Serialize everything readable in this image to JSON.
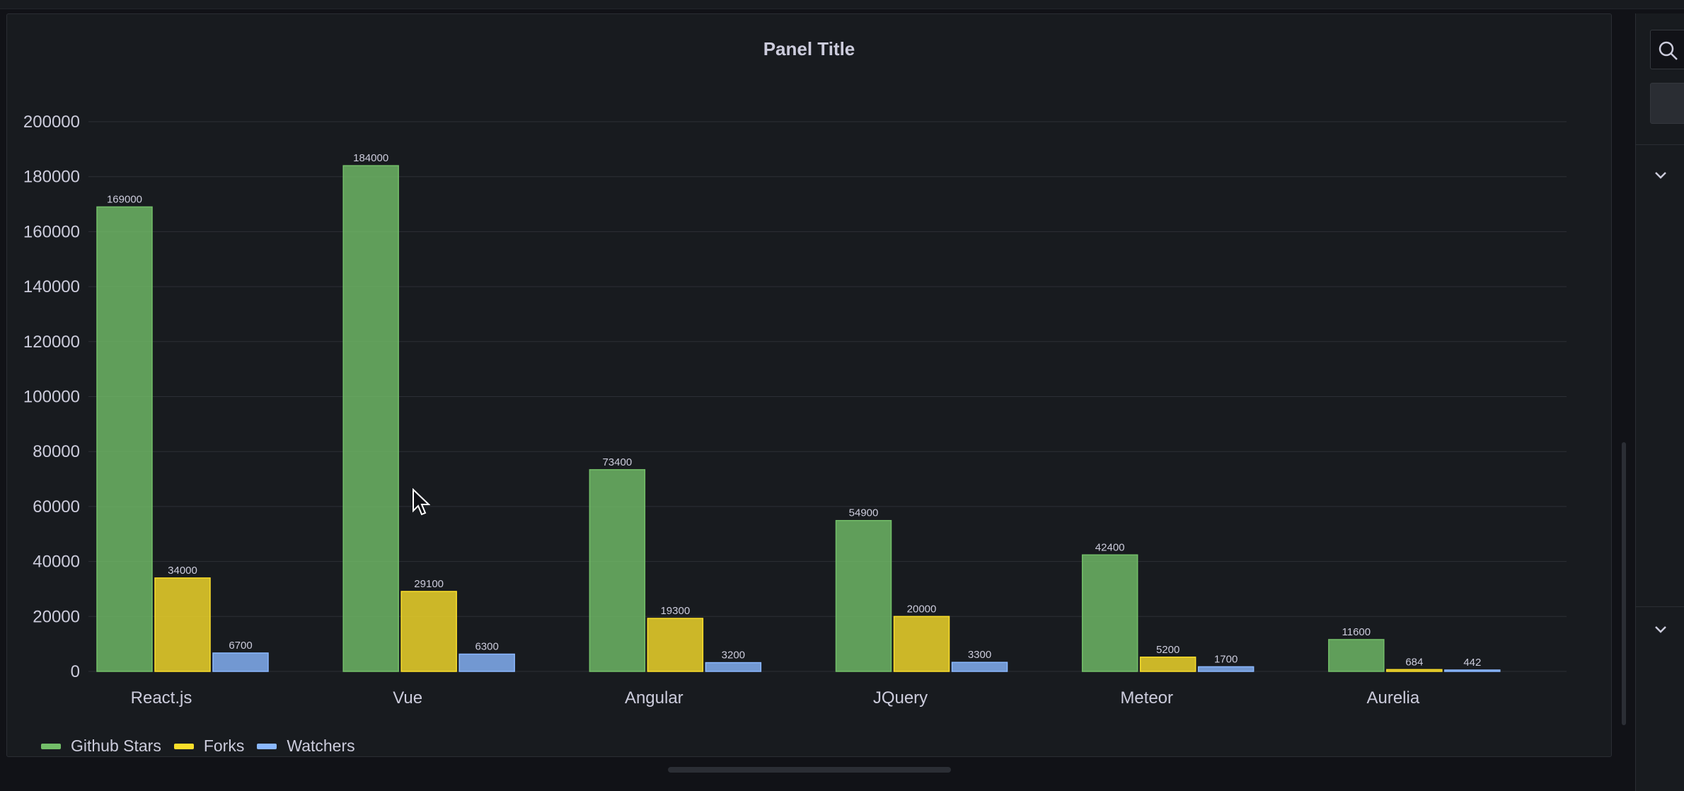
{
  "panel": {
    "title": "Panel Title"
  },
  "chart_data": {
    "type": "bar",
    "title": "Panel Title",
    "categories": [
      "React.js",
      "Vue",
      "Angular",
      "JQuery",
      "Meteor",
      "Aurelia"
    ],
    "series": [
      {
        "name": "Github Stars",
        "color": "#73bf69",
        "values": [
          169000,
          184000,
          73400,
          54900,
          42400,
          11600
        ]
      },
      {
        "name": "Forks",
        "color": "#fade2a",
        "values": [
          34000,
          29100,
          19300,
          20000,
          5200,
          684
        ]
      },
      {
        "name": "Watchers",
        "color": "#8ab8ff",
        "values": [
          6700,
          6300,
          3200,
          3300,
          1700,
          442
        ]
      }
    ],
    "yticks": [
      0,
      20000,
      40000,
      60000,
      80000,
      100000,
      120000,
      140000,
      160000,
      180000,
      200000
    ],
    "ylim": [
      0,
      200000
    ],
    "grid": true,
    "show_value_labels": true,
    "legend_position": "bottom-left"
  },
  "icons": {
    "search": "search-icon",
    "chevron": "chevron-down-icon",
    "cursor": "mouse-pointer-icon"
  }
}
